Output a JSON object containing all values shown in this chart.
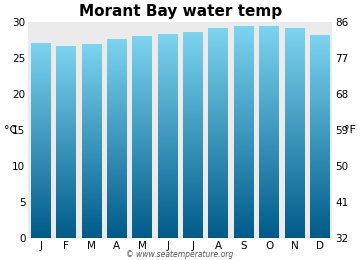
{
  "title": "Morant Bay water temp",
  "months": [
    "J",
    "F",
    "M",
    "A",
    "M",
    "J",
    "J",
    "A",
    "S",
    "O",
    "N",
    "D"
  ],
  "temps_c": [
    27.0,
    26.6,
    26.9,
    27.5,
    28.0,
    28.3,
    28.5,
    29.1,
    29.3,
    29.3,
    29.1,
    28.1
  ],
  "ylim_c": [
    0,
    30
  ],
  "yticks_c": [
    0,
    5,
    10,
    15,
    20,
    25,
    30
  ],
  "yticks_f": [
    32,
    41,
    50,
    59,
    68,
    77,
    86
  ],
  "ylabel_left": "°C",
  "ylabel_right": "°F",
  "bar_color_top": "#7dd4f0",
  "bar_color_bottom": "#005b8a",
  "plot_bg_color": "#ebebeb",
  "figure_bg_color": "#ffffff",
  "watermark": "© www.seatemperature.org",
  "title_fontsize": 11,
  "tick_fontsize": 7.5,
  "label_fontsize": 8,
  "bar_width": 0.78
}
